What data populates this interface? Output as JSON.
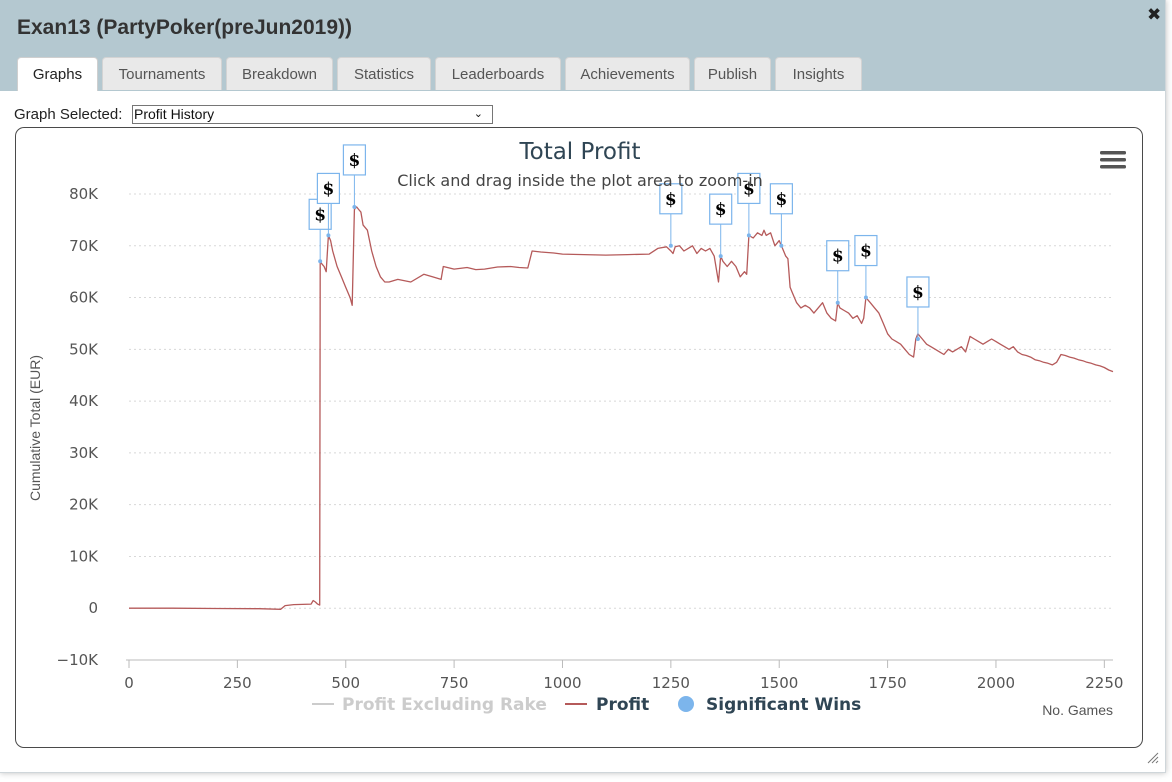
{
  "window": {
    "title": "Exan13 (PartyPoker(preJun2019))",
    "close_glyph": "✖",
    "close_icon": "close-icon"
  },
  "tabs": [
    {
      "label": "Graphs",
      "active": true
    },
    {
      "label": "Tournaments",
      "active": false
    },
    {
      "label": "Breakdown",
      "active": false
    },
    {
      "label": "Statistics",
      "active": false
    },
    {
      "label": "Leaderboards",
      "active": false
    },
    {
      "label": "Achievements",
      "active": false
    },
    {
      "label": "Publish",
      "active": false
    },
    {
      "label": "Insights",
      "active": false
    }
  ],
  "graph_selector": {
    "label": "Graph Selected:",
    "value": "Profit History"
  },
  "chart_menu_icon": "hamburger-menu-icon",
  "chart_data": {
    "type": "line",
    "title": "Total Profit",
    "subtitle": "Click and drag inside the plot area to zoom-in",
    "xlabel": "No. Games",
    "ylabel": "Cumulative Total (EUR)",
    "xlim": [
      0,
      2270
    ],
    "ylim": [
      -10000,
      80000
    ],
    "x_ticks": [
      0,
      250,
      500,
      750,
      1000,
      1250,
      1500,
      1750,
      2000,
      2250
    ],
    "x_tick_labels": [
      "0",
      "250",
      "500",
      "750",
      "1000",
      "1250",
      "1500",
      "1750",
      "2000",
      "2250"
    ],
    "y_ticks": [
      -10000,
      0,
      10000,
      20000,
      30000,
      40000,
      50000,
      60000,
      70000,
      80000
    ],
    "y_tick_labels": [
      "−10K",
      "0",
      "10K",
      "20K",
      "30K",
      "40K",
      "50K",
      "60K",
      "70K",
      "80K"
    ],
    "grid": true,
    "legend_position": "bottom",
    "legend": [
      {
        "name": "Profit Excluding Rake",
        "color": "#cccccc",
        "symbol": "line",
        "hidden": true
      },
      {
        "name": "Profit",
        "color": "#b55a5a",
        "symbol": "line",
        "hidden": false
      },
      {
        "name": "Significant Wins",
        "color": "#7cb5ec",
        "symbol": "dot",
        "hidden": false
      }
    ],
    "series": [
      {
        "name": "Profit",
        "color": "#b55a5a",
        "points": [
          [
            0,
            0
          ],
          [
            100,
            0
          ],
          [
            200,
            -50
          ],
          [
            300,
            -100
          ],
          [
            350,
            -200
          ],
          [
            360,
            500
          ],
          [
            380,
            700
          ],
          [
            420,
            800
          ],
          [
            425,
            1500
          ],
          [
            430,
            1200
          ],
          [
            435,
            800
          ],
          [
            440,
            600
          ],
          [
            441,
            67000
          ],
          [
            445,
            66500
          ],
          [
            450,
            66000
          ],
          [
            455,
            65000
          ],
          [
            460,
            72000
          ],
          [
            465,
            71000
          ],
          [
            470,
            69000
          ],
          [
            480,
            66000
          ],
          [
            490,
            64000
          ],
          [
            500,
            62000
          ],
          [
            510,
            60000
          ],
          [
            515,
            58500
          ],
          [
            520,
            77000
          ],
          [
            525,
            77500
          ],
          [
            530,
            77000
          ],
          [
            535,
            76500
          ],
          [
            540,
            74000
          ],
          [
            550,
            73000
          ],
          [
            560,
            69000
          ],
          [
            570,
            66000
          ],
          [
            580,
            64000
          ],
          [
            590,
            63000
          ],
          [
            600,
            63000
          ],
          [
            620,
            63500
          ],
          [
            650,
            63000
          ],
          [
            680,
            64500
          ],
          [
            700,
            64000
          ],
          [
            720,
            63500
          ],
          [
            725,
            66000
          ],
          [
            750,
            65500
          ],
          [
            780,
            65800
          ],
          [
            800,
            65400
          ],
          [
            820,
            65500
          ],
          [
            850,
            65900
          ],
          [
            880,
            66000
          ],
          [
            900,
            65800
          ],
          [
            920,
            65700
          ],
          [
            930,
            69000
          ],
          [
            950,
            68800
          ],
          [
            980,
            68600
          ],
          [
            1000,
            68400
          ],
          [
            1050,
            68300
          ],
          [
            1100,
            68200
          ],
          [
            1150,
            68300
          ],
          [
            1200,
            68400
          ],
          [
            1220,
            69500
          ],
          [
            1240,
            69800
          ],
          [
            1250,
            69000
          ],
          [
            1255,
            68500
          ],
          [
            1260,
            69800
          ],
          [
            1270,
            70000
          ],
          [
            1280,
            69000
          ],
          [
            1290,
            69500
          ],
          [
            1300,
            70000
          ],
          [
            1310,
            68500
          ],
          [
            1320,
            69500
          ],
          [
            1330,
            69000
          ],
          [
            1340,
            69500
          ],
          [
            1350,
            68000
          ],
          [
            1360,
            63000
          ],
          [
            1365,
            68000
          ],
          [
            1370,
            67000
          ],
          [
            1380,
            66000
          ],
          [
            1390,
            67000
          ],
          [
            1400,
            66000
          ],
          [
            1410,
            64000
          ],
          [
            1420,
            65000
          ],
          [
            1425,
            64500
          ],
          [
            1430,
            72000
          ],
          [
            1440,
            71500
          ],
          [
            1450,
            72500
          ],
          [
            1460,
            72000
          ],
          [
            1465,
            73000
          ],
          [
            1470,
            72000
          ],
          [
            1480,
            72500
          ],
          [
            1490,
            70000
          ],
          [
            1500,
            71000
          ],
          [
            1505,
            70000
          ],
          [
            1510,
            69000
          ],
          [
            1515,
            68000
          ],
          [
            1520,
            67500
          ],
          [
            1525,
            62000
          ],
          [
            1530,
            61000
          ],
          [
            1540,
            59000
          ],
          [
            1550,
            58000
          ],
          [
            1560,
            58500
          ],
          [
            1570,
            58000
          ],
          [
            1580,
            57000
          ],
          [
            1590,
            58000
          ],
          [
            1600,
            59000
          ],
          [
            1610,
            57000
          ],
          [
            1620,
            56000
          ],
          [
            1630,
            55500
          ],
          [
            1635,
            59000
          ],
          [
            1640,
            58000
          ],
          [
            1650,
            57500
          ],
          [
            1660,
            57000
          ],
          [
            1670,
            56000
          ],
          [
            1680,
            56500
          ],
          [
            1690,
            55000
          ],
          [
            1695,
            56000
          ],
          [
            1700,
            60000
          ],
          [
            1710,
            59000
          ],
          [
            1720,
            58000
          ],
          [
            1730,
            57000
          ],
          [
            1740,
            55000
          ],
          [
            1750,
            53000
          ],
          [
            1760,
            52000
          ],
          [
            1770,
            51500
          ],
          [
            1780,
            51000
          ],
          [
            1790,
            50000
          ],
          [
            1800,
            49000
          ],
          [
            1810,
            48500
          ],
          [
            1815,
            52000
          ],
          [
            1820,
            53000
          ],
          [
            1830,
            52000
          ],
          [
            1840,
            51000
          ],
          [
            1850,
            50500
          ],
          [
            1860,
            50000
          ],
          [
            1870,
            49500
          ],
          [
            1880,
            49000
          ],
          [
            1890,
            50000
          ],
          [
            1900,
            49500
          ],
          [
            1910,
            50000
          ],
          [
            1920,
            50500
          ],
          [
            1930,
            49500
          ],
          [
            1940,
            52500
          ],
          [
            1950,
            52000
          ],
          [
            1960,
            51500
          ],
          [
            1970,
            51000
          ],
          [
            1980,
            51500
          ],
          [
            1990,
            52000
          ],
          [
            2000,
            51500
          ],
          [
            2010,
            51000
          ],
          [
            2020,
            50500
          ],
          [
            2030,
            50000
          ],
          [
            2040,
            50500
          ],
          [
            2050,
            49500
          ],
          [
            2060,
            49000
          ],
          [
            2070,
            48800
          ],
          [
            2080,
            48500
          ],
          [
            2090,
            48000
          ],
          [
            2100,
            47800
          ],
          [
            2110,
            47500
          ],
          [
            2120,
            47300
          ],
          [
            2130,
            47000
          ],
          [
            2140,
            47500
          ],
          [
            2150,
            49000
          ],
          [
            2160,
            48800
          ],
          [
            2170,
            48500
          ],
          [
            2180,
            48300
          ],
          [
            2190,
            48000
          ],
          [
            2200,
            47800
          ],
          [
            2210,
            47500
          ],
          [
            2220,
            47300
          ],
          [
            2230,
            47000
          ],
          [
            2240,
            46800
          ],
          [
            2250,
            46500
          ],
          [
            2260,
            46000
          ],
          [
            2270,
            45700
          ]
        ]
      }
    ],
    "significant_wins": {
      "label": "$",
      "points": [
        [
          441,
          67000
        ],
        [
          460,
          72000
        ],
        [
          520,
          77500
        ],
        [
          1250,
          70000
        ],
        [
          1365,
          68000
        ],
        [
          1430,
          72000
        ],
        [
          1505,
          70000
        ],
        [
          1635,
          59000
        ],
        [
          1700,
          60000
        ],
        [
          1820,
          52000
        ]
      ]
    }
  }
}
